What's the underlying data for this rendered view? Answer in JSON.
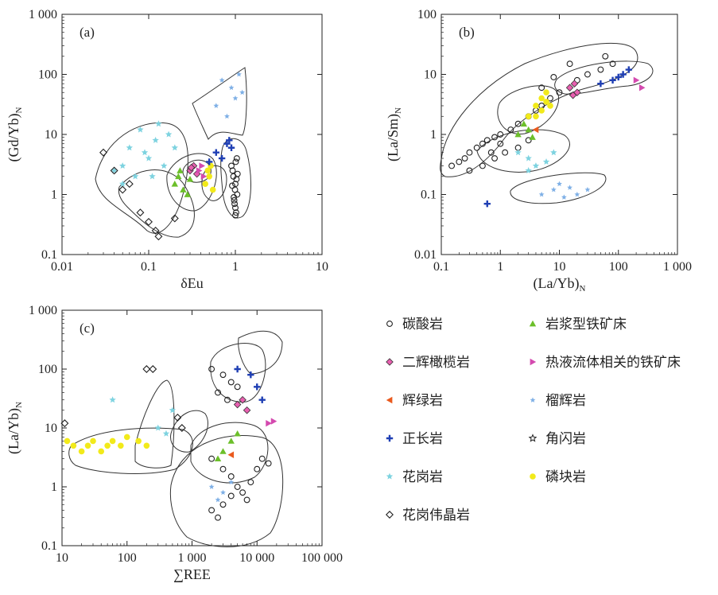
{
  "colors": {
    "carbonatite": "#222222",
    "lherzolite": "#e85fb0",
    "gabbro": "#ea5a1e",
    "syenite": "#1f3fb4",
    "granite": "#7ed3e0",
    "pegmatite": "#222222",
    "magmatic_fe": "#6cbf2a",
    "hydrothermal_fe": "#d44aaf",
    "pyroxenite": "#7fb0e6",
    "hornblendite": "#222222",
    "phoscorite": "#f2ea1a",
    "envelope": "#333333"
  },
  "legend": [
    {
      "key": "carbonatite",
      "label": "碳酸岩",
      "marker": "circle-open"
    },
    {
      "key": "magmatic_fe",
      "label": "岩浆型铁矿床",
      "marker": "triangle"
    },
    {
      "key": "lherzolite",
      "label": "二辉橄榄岩",
      "marker": "diamond-pink"
    },
    {
      "key": "hydrothermal_fe",
      "label": "热液流体相关的铁矿床",
      "marker": "triangle-right"
    },
    {
      "key": "gabbro",
      "label": "辉绿岩",
      "marker": "triangle-left"
    },
    {
      "key": "pyroxenite",
      "label": "榴辉岩",
      "marker": "star-small"
    },
    {
      "key": "syenite",
      "label": "正长岩",
      "marker": "cross"
    },
    {
      "key": "hornblendite",
      "label": "角闪岩",
      "marker": "star-open"
    },
    {
      "key": "granite",
      "label": "花岗岩",
      "marker": "star"
    },
    {
      "key": "phoscorite",
      "label": "磷块岩",
      "marker": "dot"
    },
    {
      "key": "pegmatite",
      "label": "花岗伟晶岩",
      "marker": "diamond-open"
    }
  ],
  "chart_data": [
    {
      "type": "scatter",
      "panel_label": "(a)",
      "xlabel": "δEu",
      "ylabel": "(Gd/Yb)N",
      "xscale": "log",
      "yscale": "log",
      "xlim": [
        0.01,
        10
      ],
      "ylim": [
        0.1,
        1000
      ],
      "xticks": [
        "0.01",
        "0.1",
        "1",
        "10"
      ],
      "yticks": [
        "0.1",
        "1",
        "10",
        "100",
        "1 000"
      ],
      "series": [
        {
          "key": "granite",
          "points": [
            [
              0.05,
              3
            ],
            [
              0.06,
              6
            ],
            [
              0.08,
              12
            ],
            [
              0.1,
              4
            ],
            [
              0.12,
              8
            ],
            [
              0.15,
              3
            ],
            [
              0.2,
              6
            ],
            [
              0.05,
              1.5
            ],
            [
              0.07,
              2
            ],
            [
              0.09,
              5
            ],
            [
              0.13,
              15
            ],
            [
              0.04,
              2.5
            ],
            [
              0.11,
              2
            ],
            [
              0.17,
              10
            ]
          ]
        },
        {
          "key": "pegmatite",
          "points": [
            [
              0.03,
              5
            ],
            [
              0.04,
              2.5
            ],
            [
              0.05,
              1.2
            ],
            [
              0.08,
              0.5
            ],
            [
              0.1,
              0.35
            ],
            [
              0.12,
              0.25
            ],
            [
              0.13,
              0.2
            ],
            [
              0.06,
              1.5
            ],
            [
              0.2,
              0.4
            ]
          ]
        },
        {
          "key": "pyroxenite",
          "points": [
            [
              0.7,
              80
            ],
            [
              0.9,
              60
            ],
            [
              1.0,
              40
            ],
            [
              1.1,
              100
            ],
            [
              0.6,
              30
            ],
            [
              0.8,
              20
            ],
            [
              1.2,
              50
            ]
          ]
        },
        {
          "key": "magmatic_fe",
          "points": [
            [
              0.2,
              1.5
            ],
            [
              0.22,
              2
            ],
            [
              0.25,
              1.2
            ],
            [
              0.28,
              1
            ],
            [
              0.3,
              1.8
            ],
            [
              0.23,
              2.5
            ]
          ]
        },
        {
          "key": "phoscorite",
          "points": [
            [
              0.45,
              1.5
            ],
            [
              0.5,
              2
            ],
            [
              0.55,
              1.2
            ],
            [
              0.48,
              2.5
            ],
            [
              0.52,
              3
            ]
          ]
        },
        {
          "key": "lherzolite",
          "points": [
            [
              0.3,
              2.5
            ],
            [
              0.33,
              3
            ],
            [
              0.36,
              2.2
            ],
            [
              0.31,
              2.8
            ]
          ]
        },
        {
          "key": "hydrothermal_fe",
          "points": [
            [
              0.38,
              2.5
            ],
            [
              0.41,
              3
            ],
            [
              0.43,
              2
            ]
          ]
        },
        {
          "key": "syenite",
          "points": [
            [
              0.6,
              5
            ],
            [
              0.8,
              7
            ],
            [
              0.9,
              6
            ],
            [
              0.7,
              4
            ],
            [
              0.85,
              8
            ],
            [
              0.5,
              3.5
            ]
          ]
        },
        {
          "key": "carbonatite",
          "points": [
            [
              0.9,
              3
            ],
            [
              0.95,
              2
            ],
            [
              1.0,
              1.5
            ],
            [
              1.05,
              1
            ],
            [
              0.97,
              0.8
            ],
            [
              1.0,
              0.6
            ],
            [
              1.02,
              0.5
            ],
            [
              0.93,
              2.5
            ],
            [
              0.99,
              1.2
            ],
            [
              1.03,
              1.8
            ],
            [
              0.96,
              0.9
            ],
            [
              1.01,
              3.5
            ],
            [
              1.04,
              4
            ],
            [
              0.98,
              0.7
            ],
            [
              0.92,
              1.4
            ],
            [
              1.06,
              2.2
            ],
            [
              1.0,
              0.45
            ]
          ]
        }
      ]
    },
    {
      "type": "scatter",
      "panel_label": "(b)",
      "xlabel": "(La/Yb)N",
      "ylabel": "(La/Sm)N",
      "xscale": "log",
      "yscale": "log",
      "xlim": [
        0.1,
        1000
      ],
      "ylim": [
        0.01,
        100
      ],
      "xticks": [
        "0.1",
        "1",
        "10",
        "100",
        "1 000"
      ],
      "yticks": [
        "0.01",
        "0.1",
        "1",
        "10",
        "100"
      ],
      "series": [
        {
          "key": "carbonatite",
          "points": [
            [
              0.15,
              0.3
            ],
            [
              0.2,
              0.35
            ],
            [
              0.25,
              0.4
            ],
            [
              0.3,
              0.5
            ],
            [
              0.4,
              0.6
            ],
            [
              0.5,
              0.7
            ],
            [
              0.6,
              0.8
            ],
            [
              0.8,
              0.9
            ],
            [
              1,
              1
            ],
            [
              1.5,
              1.2
            ],
            [
              2,
              1.5
            ],
            [
              3,
              2
            ],
            [
              4,
              2.5
            ],
            [
              5,
              3
            ],
            [
              7,
              4
            ],
            [
              10,
              5
            ],
            [
              20,
              8
            ],
            [
              30,
              10
            ],
            [
              50,
              12
            ],
            [
              0.5,
              0.3
            ],
            [
              0.8,
              0.4
            ],
            [
              1.2,
              0.5
            ],
            [
              2,
              0.6
            ],
            [
              3,
              0.8
            ],
            [
              0.3,
              0.25
            ],
            [
              0.7,
              0.5
            ],
            [
              1,
              0.7
            ],
            [
              5,
              6
            ],
            [
              8,
              9
            ],
            [
              15,
              15
            ],
            [
              60,
              20
            ],
            [
              80,
              15
            ]
          ]
        },
        {
          "key": "phoscorite",
          "points": [
            [
              3,
              2
            ],
            [
              4,
              3
            ],
            [
              5,
              4
            ],
            [
              6,
              5
            ],
            [
              7,
              3
            ],
            [
              5,
              2.5
            ],
            [
              4,
              2
            ],
            [
              6,
              3.5
            ]
          ]
        },
        {
          "key": "magmatic_fe",
          "points": [
            [
              2,
              1
            ],
            [
              2.5,
              1.5
            ],
            [
              3,
              1.2
            ],
            [
              3.5,
              0.9
            ]
          ]
        },
        {
          "key": "lherzolite",
          "points": [
            [
              15,
              6
            ],
            [
              18,
              7
            ],
            [
              20,
              5
            ],
            [
              17,
              4.5
            ]
          ]
        },
        {
          "key": "hydrothermal_fe",
          "points": [
            [
              200,
              8
            ],
            [
              250,
              6
            ]
          ]
        },
        {
          "key": "syenite",
          "points": [
            [
              50,
              7
            ],
            [
              80,
              8
            ],
            [
              100,
              9
            ],
            [
              120,
              10
            ],
            [
              150,
              12
            ],
            [
              0.6,
              0.07
            ]
          ]
        },
        {
          "key": "granite",
          "points": [
            [
              2,
              0.5
            ],
            [
              3,
              0.4
            ],
            [
              4,
              0.3
            ],
            [
              6,
              0.35
            ],
            [
              8,
              0.5
            ],
            [
              3,
              0.25
            ]
          ]
        },
        {
          "key": "pyroxenite",
          "points": [
            [
              5,
              0.1
            ],
            [
              8,
              0.12
            ],
            [
              10,
              0.15
            ],
            [
              15,
              0.13
            ],
            [
              20,
              0.1
            ],
            [
              30,
              0.12
            ],
            [
              12,
              0.09
            ]
          ]
        },
        {
          "key": "gabbro",
          "points": [
            [
              4,
              1.2
            ]
          ]
        }
      ]
    },
    {
      "type": "scatter",
      "panel_label": "(c)",
      "xlabel": "∑REE",
      "ylabel": "(La/Yb)N",
      "xscale": "log",
      "yscale": "log",
      "xlim": [
        10,
        100000
      ],
      "ylim": [
        0.1,
        1000
      ],
      "xticks": [
        "10",
        "100",
        "1 000",
        "10 000",
        "100 000"
      ],
      "yticks": [
        "0.1",
        "1",
        "10",
        "100",
        "1 000"
      ],
      "series": [
        {
          "key": "phoscorite",
          "points": [
            [
              12,
              6
            ],
            [
              15,
              5
            ],
            [
              20,
              4
            ],
            [
              25,
              5
            ],
            [
              30,
              6
            ],
            [
              40,
              4
            ],
            [
              50,
              5
            ],
            [
              60,
              6
            ],
            [
              80,
              5
            ],
            [
              100,
              7
            ],
            [
              150,
              6
            ],
            [
              200,
              5
            ]
          ]
        },
        {
          "key": "pegmatite",
          "points": [
            [
              11,
              12
            ],
            [
              200,
              100
            ],
            [
              250,
              100
            ],
            [
              600,
              15
            ],
            [
              700,
              10
            ]
          ]
        },
        {
          "key": "granite",
          "points": [
            [
              60,
              30
            ],
            [
              300,
              10
            ],
            [
              400,
              8
            ],
            [
              500,
              20
            ]
          ]
        },
        {
          "key": "carbonatite",
          "points": [
            [
              2000,
              100
            ],
            [
              3000,
              80
            ],
            [
              4000,
              60
            ],
            [
              5000,
              50
            ],
            [
              2500,
              40
            ],
            [
              3500,
              30
            ],
            [
              2000,
              3
            ],
            [
              3000,
              2
            ],
            [
              4000,
              1.5
            ],
            [
              5000,
              1
            ],
            [
              6000,
              0.8
            ],
            [
              7000,
              0.6
            ],
            [
              8000,
              1.2
            ],
            [
              10000,
              2
            ],
            [
              12000,
              3
            ],
            [
              15000,
              2.5
            ],
            [
              4000,
              0.7
            ],
            [
              3000,
              0.5
            ],
            [
              2000,
              0.4
            ],
            [
              2500,
              0.3
            ]
          ]
        },
        {
          "key": "syenite",
          "points": [
            [
              5000,
              100
            ],
            [
              8000,
              80
            ],
            [
              10000,
              50
            ],
            [
              12000,
              30
            ]
          ]
        },
        {
          "key": "lherzolite",
          "points": [
            [
              5000,
              25
            ],
            [
              6000,
              30
            ],
            [
              7000,
              20
            ]
          ]
        },
        {
          "key": "hydrothermal_fe",
          "points": [
            [
              15000,
              12
            ],
            [
              18000,
              13
            ]
          ]
        },
        {
          "key": "magmatic_fe",
          "points": [
            [
              3000,
              4
            ],
            [
              4000,
              6
            ],
            [
              5000,
              8
            ],
            [
              2500,
              3
            ]
          ]
        },
        {
          "key": "gabbro",
          "points": [
            [
              4000,
              3.5
            ]
          ]
        },
        {
          "key": "pyroxenite",
          "points": [
            [
              2000,
              1
            ],
            [
              3000,
              0.8
            ],
            [
              2500,
              0.6
            ],
            [
              4000,
              1.2
            ]
          ]
        }
      ]
    }
  ]
}
